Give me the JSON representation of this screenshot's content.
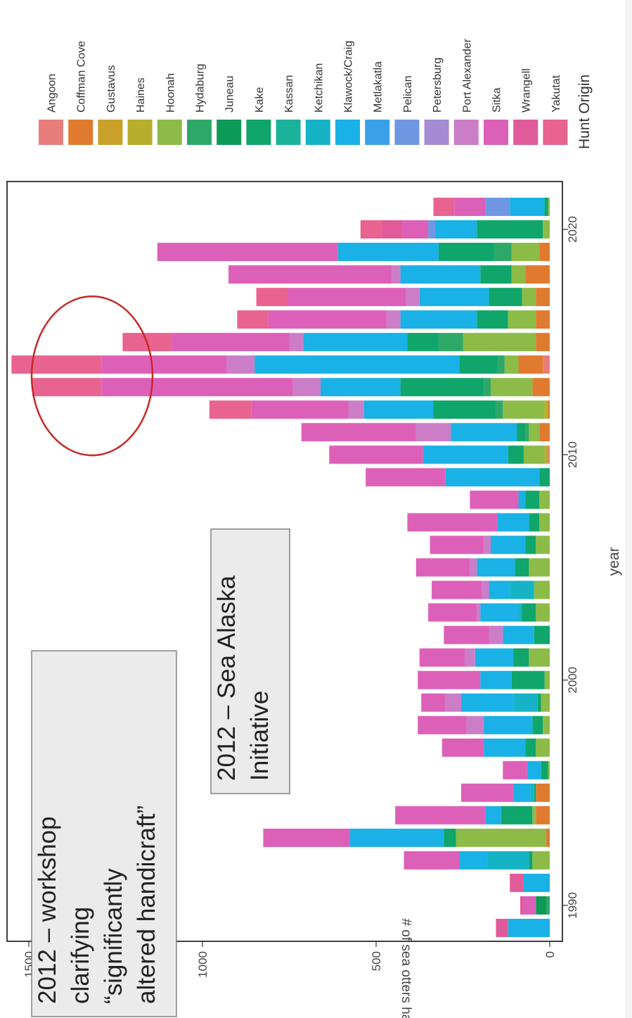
{
  "chart_data": {
    "type": "bar",
    "stacked": true,
    "orientation": "rotated-90-clockwise",
    "xlabel": "year",
    "ylabel": "# of sea otters harvested",
    "x_ticks": [
      "1990",
      "2000",
      "2010",
      "2020"
    ],
    "y_ticks": [
      "0",
      "500",
      "1000",
      "1500"
    ],
    "xlim": [
      1988.5,
      2021.5
    ],
    "ylim": [
      0,
      1500
    ],
    "legend": {
      "title": "Hunt Origin",
      "placement": "right"
    },
    "categories": [
      "1989",
      "1990",
      "1991",
      "1992",
      "1993",
      "1994",
      "1995",
      "1996",
      "1997",
      "1998",
      "1999",
      "2000",
      "2001",
      "2002",
      "2003",
      "2004",
      "2005",
      "2006",
      "2007",
      "2008",
      "2009",
      "2010",
      "2011",
      "2012",
      "2013",
      "2014",
      "2015",
      "2016",
      "2017",
      "2018",
      "2019",
      "2020",
      "2021"
    ],
    "series": [
      {
        "name": "Yakutat",
        "color": "#e8638f",
        "values": [
          0,
          0,
          0,
          0,
          0,
          0,
          0,
          0,
          0,
          0,
          0,
          0,
          0,
          0,
          0,
          0,
          0,
          0,
          0,
          0,
          0,
          0,
          0,
          120,
          200,
          260,
          140,
          90,
          90,
          0,
          0,
          60,
          60
        ]
      },
      {
        "name": "Wrangell",
        "color": "#e15b9a",
        "values": [
          35,
          10,
          40,
          0,
          0,
          0,
          0,
          0,
          0,
          0,
          0,
          0,
          0,
          0,
          0,
          0,
          0,
          0,
          0,
          0,
          0,
          0,
          0,
          0,
          0,
          0,
          0,
          0,
          0,
          0,
          0,
          60,
          0
        ]
      },
      {
        "name": "Sitka",
        "color": "#dd60b8",
        "values": [
          0,
          35,
          0,
          160,
          250,
          260,
          150,
          70,
          120,
          140,
          70,
          180,
          130,
          130,
          140,
          145,
          155,
          155,
          260,
          140,
          230,
          270,
          330,
          280,
          550,
          360,
          340,
          340,
          340,
          470,
          520,
          75,
          90
        ]
      },
      {
        "name": "Port Alexander",
        "color": "#cc7dc7",
        "values": [
          0,
          0,
          0,
          0,
          0,
          0,
          0,
          0,
          0,
          50,
          45,
          0,
          30,
          40,
          10,
          20,
          20,
          20,
          0,
          0,
          0,
          0,
          100,
          45,
          80,
          80,
          40,
          40,
          40,
          25,
          0,
          0,
          0
        ]
      },
      {
        "name": "Petersburg",
        "color": "#a58bd3",
        "values": [
          0,
          0,
          0,
          0,
          0,
          0,
          0,
          0,
          0,
          0,
          0,
          0,
          0,
          0,
          0,
          0,
          0,
          0,
          0,
          0,
          0,
          0,
          0,
          0,
          0,
          0,
          0,
          0,
          0,
          0,
          0,
          0,
          0
        ]
      },
      {
        "name": "Pelican",
        "color": "#6f97e2",
        "values": [
          0,
          0,
          0,
          0,
          0,
          0,
          0,
          0,
          0,
          0,
          0,
          0,
          0,
          0,
          0,
          0,
          0,
          0,
          0,
          0,
          0,
          0,
          0,
          0,
          0,
          0,
          0,
          0,
          0,
          0,
          0,
          20,
          70
        ]
      },
      {
        "name": "Metlakatla",
        "color": "#3aa0e8",
        "values": [
          0,
          0,
          0,
          0,
          0,
          0,
          0,
          0,
          0,
          0,
          0,
          0,
          0,
          0,
          0,
          0,
          0,
          0,
          0,
          0,
          0,
          0,
          0,
          0,
          0,
          0,
          0,
          0,
          0,
          0,
          0,
          0,
          0
        ]
      },
      {
        "name": "Klawock/Craig",
        "color": "#19b1e6",
        "values": [
          120,
          0,
          75,
          80,
          270,
          45,
          50,
          40,
          120,
          140,
          150,
          90,
          110,
          90,
          110,
          60,
          110,
          100,
          90,
          20,
          270,
          245,
          190,
          200,
          230,
          590,
          300,
          220,
          200,
          230,
          290,
          120,
          100
        ]
      },
      {
        "name": "Ketchikan",
        "color": "#16b3c6",
        "values": [
          0,
          0,
          0,
          120,
          0,
          0,
          10,
          0,
          0,
          0,
          70,
          0,
          0,
          0,
          10,
          70,
          0,
          0,
          0,
          0,
          0,
          0,
          0,
          0,
          0,
          0,
          0,
          0,
          0,
          0,
          0,
          0,
          0
        ]
      },
      {
        "name": "Kassan",
        "color": "#1ab29b",
        "values": [
          0,
          0,
          0,
          0,
          0,
          0,
          0,
          0,
          0,
          0,
          0,
          0,
          0,
          0,
          0,
          0,
          0,
          0,
          0,
          0,
          0,
          0,
          0,
          0,
          0,
          0,
          0,
          0,
          0,
          0,
          0,
          0,
          0
        ]
      },
      {
        "name": "Kake",
        "color": "#0fa56b",
        "values": [
          0,
          0,
          0,
          10,
          35,
          90,
          5,
          20,
          30,
          30,
          10,
          95,
          45,
          45,
          40,
          0,
          40,
          30,
          30,
          40,
          30,
          45,
          25,
          180,
          240,
          110,
          90,
          90,
          95,
          90,
          160,
          190,
          10
        ]
      },
      {
        "name": "Juneau",
        "color": "#0c9a56",
        "values": [
          0,
          30,
          0,
          0,
          0,
          0,
          0,
          0,
          0,
          0,
          0,
          0,
          0,
          0,
          0,
          0,
          0,
          0,
          0,
          0,
          0,
          0,
          0,
          0,
          0,
          0,
          0,
          0,
          0,
          0,
          0,
          0,
          0
        ]
      },
      {
        "name": "Hydaburg",
        "color": "#2ea868",
        "values": [
          0,
          10,
          0,
          0,
          0,
          0,
          0,
          0,
          0,
          0,
          0,
          0,
          0,
          0,
          0,
          0,
          0,
          0,
          0,
          0,
          0,
          0,
          10,
          20,
          20,
          20,
          70,
          0,
          0,
          0,
          50,
          0,
          0
        ]
      },
      {
        "name": "Hoonah",
        "color": "#8dbb48",
        "values": [
          0,
          0,
          0,
          50,
          260,
          10,
          0,
          5,
          40,
          20,
          25,
          15,
          60,
          0,
          40,
          45,
          60,
          40,
          30,
          30,
          0,
          60,
          30,
          120,
          120,
          40,
          210,
          80,
          40,
          40,
          80,
          20,
          5
        ]
      },
      {
        "name": "Haines",
        "color": "#b8ae2e",
        "values": [
          0,
          0,
          0,
          0,
          0,
          0,
          0,
          0,
          0,
          0,
          0,
          0,
          0,
          0,
          0,
          0,
          0,
          0,
          0,
          0,
          0,
          10,
          0,
          10,
          0,
          0,
          0,
          0,
          0,
          0,
          0,
          0,
          0
        ]
      },
      {
        "name": "Gustavus",
        "color": "#c9a02a",
        "values": [
          0,
          0,
          0,
          0,
          0,
          0,
          0,
          0,
          0,
          0,
          0,
          0,
          0,
          0,
          0,
          0,
          0,
          0,
          0,
          0,
          0,
          0,
          0,
          0,
          0,
          0,
          0,
          0,
          0,
          0,
          0,
          0,
          0
        ]
      },
      {
        "name": "Coffman Cove",
        "color": "#e07a2f",
        "values": [
          0,
          0,
          0,
          0,
          10,
          40,
          40,
          0,
          0,
          0,
          0,
          0,
          0,
          0,
          0,
          0,
          0,
          0,
          0,
          0,
          0,
          0,
          30,
          5,
          50,
          70,
          40,
          40,
          40,
          70,
          30,
          0,
          0
        ]
      },
      {
        "name": "Angoon",
        "color": "#e77d7b",
        "values": [
          0,
          0,
          0,
          0,
          0,
          0,
          0,
          0,
          0,
          0,
          0,
          0,
          0,
          0,
          0,
          0,
          0,
          0,
          0,
          0,
          0,
          5,
          0,
          0,
          0,
          20,
          0,
          0,
          0,
          0,
          0,
          0,
          0
        ]
      }
    ],
    "annotations": [
      {
        "id": "workshop",
        "lines": [
          "2012 – workshop",
          "clarifying",
          "“significantly",
          "altered handicraft”"
        ]
      },
      {
        "id": "initiative",
        "lines": [
          "2012 – Sea Alaska",
          "Initiative"
        ]
      }
    ],
    "highlight": {
      "shape": "ellipse",
      "color": "#c62828",
      "years": [
        "2013",
        "2014"
      ]
    }
  }
}
